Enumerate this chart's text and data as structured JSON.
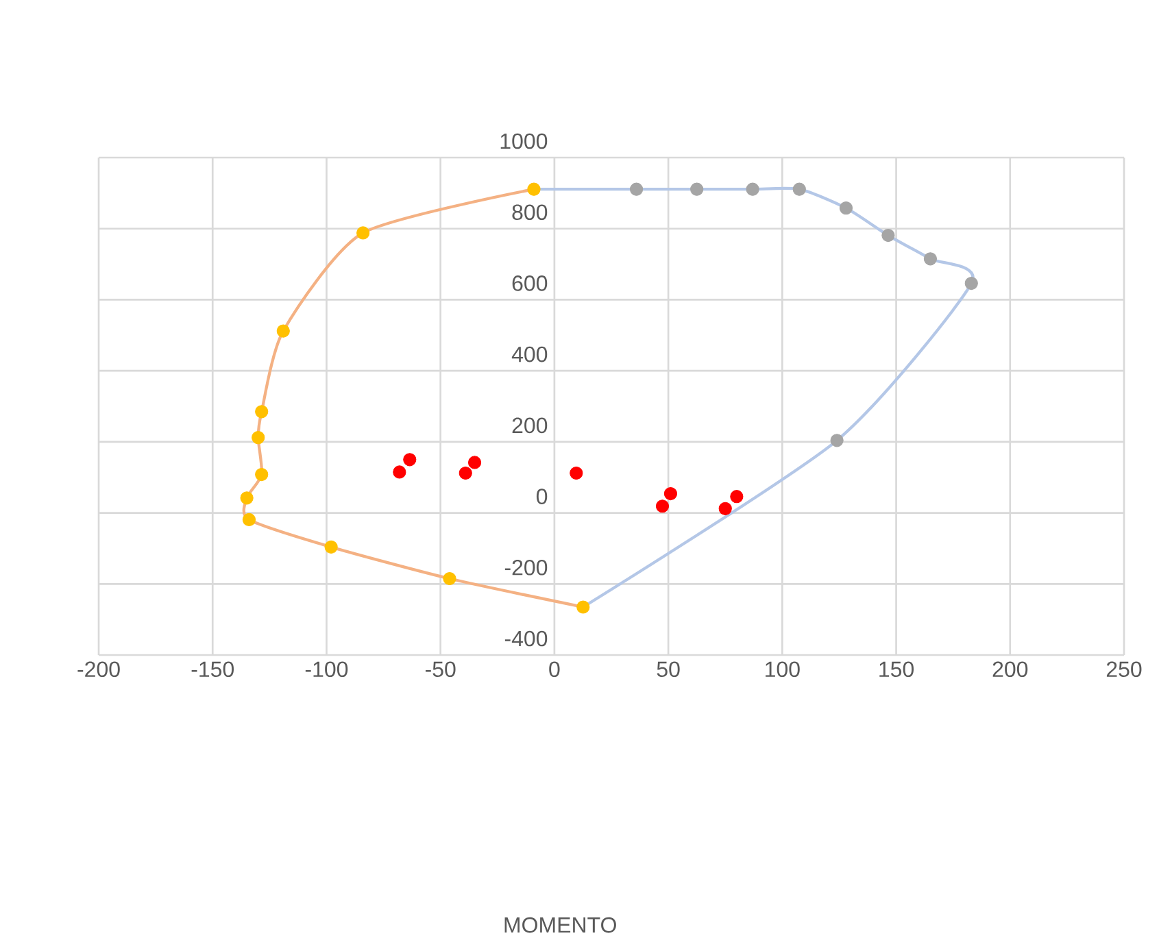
{
  "chart_data": {
    "type": "scatter",
    "annotations": [
      "MOMENTO"
    ],
    "xlim": [
      -200,
      250
    ],
    "xticks": [
      -200,
      -150,
      -100,
      -50,
      0,
      50,
      100,
      150,
      200,
      250
    ],
    "ylim": [
      -400,
      1000
    ],
    "yticks": [
      -400,
      -200,
      0,
      200,
      400,
      600,
      800,
      1000
    ],
    "grid": true,
    "marker": "circle",
    "series": [
      {
        "type": "line",
        "marker": "none",
        "color": "#f4b183",
        "x": [
          12.6,
          -46,
          -98,
          -134,
          -135,
          -128.5,
          -130,
          -128.5,
          -119,
          -84,
          -9
        ],
        "values": [
          -265,
          -185,
          -96,
          -19,
          42,
          108,
          212,
          285,
          512,
          788,
          911
        ]
      },
      {
        "type": "line",
        "marker": "none",
        "color": "#b4c7e7",
        "x": [
          -9,
          36,
          62.5,
          87,
          107.5,
          128,
          146.5,
          165,
          183,
          124,
          12.6
        ],
        "values": [
          911,
          911,
          911,
          911,
          911,
          858,
          781,
          715,
          646,
          204,
          -265
        ]
      },
      {
        "color": "#ffc000",
        "x": [
          12.6,
          -46,
          -98,
          -134,
          -135,
          -128.5,
          -130,
          -128.5,
          -119,
          -84,
          -9
        ],
        "values": [
          -265,
          -185,
          -96,
          -19,
          42,
          108,
          212,
          285,
          512,
          788,
          911
        ]
      },
      {
        "color": "#a5a5a5",
        "x": [
          36,
          62.5,
          87,
          107.5,
          128,
          146.5,
          165,
          183,
          124
        ],
        "values": [
          911,
          911,
          911,
          911,
          858,
          781,
          715,
          646,
          204
        ]
      },
      {
        "color": "#ff0000",
        "x": [
          -68,
          -63.5,
          -39,
          -35,
          9.6,
          47.4,
          51,
          75,
          80
        ],
        "values": [
          115,
          150,
          112,
          142,
          112,
          19,
          54,
          12,
          46
        ]
      }
    ]
  }
}
